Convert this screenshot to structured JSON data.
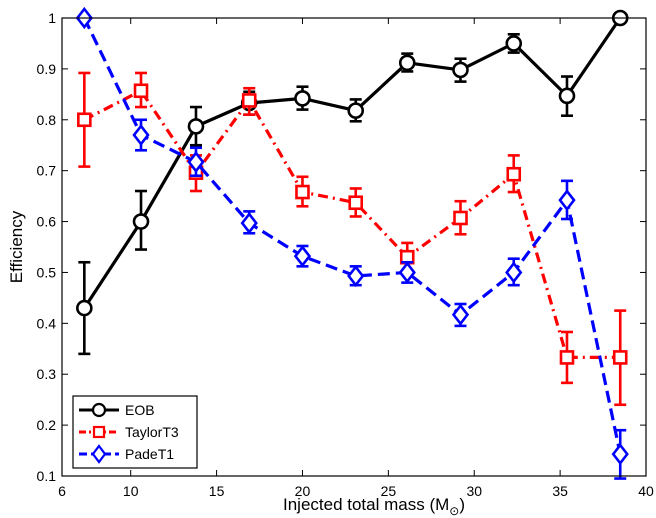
{
  "chart_data": {
    "type": "line",
    "xlabel": "Injected total mass (M",
    "xlabel_sub": "⊙",
    "xlabel_close": ")",
    "ylabel": "Efficiency",
    "xlim": [
      6,
      40
    ],
    "ylim": [
      0.1,
      1.0
    ],
    "xticks": [
      6,
      10,
      15,
      20,
      25,
      30,
      35,
      40
    ],
    "yticks": [
      0.1,
      0.2,
      0.3,
      0.4,
      0.5,
      0.6,
      0.7,
      0.8,
      0.9,
      1
    ],
    "xtick_labels": [
      "6",
      "10",
      "15",
      "20",
      "25",
      "30",
      "35",
      "40"
    ],
    "ytick_labels": [
      "0.1",
      "0.2",
      "0.3",
      "0.4",
      "0.5",
      "0.6",
      "0.7",
      "0.8",
      "0.9",
      "1"
    ],
    "grid": false,
    "legend_position": "bottom-left",
    "series": [
      {
        "name": "EOB",
        "color": "#000000",
        "line_style": "solid",
        "marker": "circle",
        "points": [
          {
            "x": 7.3,
            "y": 0.43,
            "lo": 0.34,
            "hi": 0.52
          },
          {
            "x": 10.6,
            "y": 0.6,
            "lo": 0.545,
            "hi": 0.66
          },
          {
            "x": 13.8,
            "y": 0.787,
            "lo": 0.75,
            "hi": 0.825
          },
          {
            "x": 16.9,
            "y": 0.833,
            "lo": 0.81,
            "hi": 0.855
          },
          {
            "x": 20.0,
            "y": 0.842,
            "lo": 0.82,
            "hi": 0.865
          },
          {
            "x": 23.1,
            "y": 0.818,
            "lo": 0.797,
            "hi": 0.84
          },
          {
            "x": 26.1,
            "y": 0.912,
            "lo": 0.895,
            "hi": 0.93
          },
          {
            "x": 29.2,
            "y": 0.898,
            "lo": 0.875,
            "hi": 0.92
          },
          {
            "x": 32.3,
            "y": 0.95,
            "lo": 0.932,
            "hi": 0.968
          },
          {
            "x": 35.4,
            "y": 0.847,
            "lo": 0.808,
            "hi": 0.885
          },
          {
            "x": 38.5,
            "y": 1.0,
            "lo": 1.0,
            "hi": 1.0
          }
        ]
      },
      {
        "name": "TaylorT3",
        "color": "#ff0000",
        "line_style": "dashdot",
        "marker": "square",
        "points": [
          {
            "x": 7.3,
            "y": 0.8,
            "lo": 0.708,
            "hi": 0.892
          },
          {
            "x": 10.6,
            "y": 0.857,
            "lo": 0.825,
            "hi": 0.892
          },
          {
            "x": 13.8,
            "y": 0.696,
            "lo": 0.66,
            "hi": 0.73
          },
          {
            "x": 16.9,
            "y": 0.838,
            "lo": 0.81,
            "hi": 0.862
          },
          {
            "x": 20.0,
            "y": 0.658,
            "lo": 0.63,
            "hi": 0.688
          },
          {
            "x": 23.1,
            "y": 0.637,
            "lo": 0.61,
            "hi": 0.665
          },
          {
            "x": 26.1,
            "y": 0.53,
            "lo": 0.503,
            "hi": 0.558
          },
          {
            "x": 29.2,
            "y": 0.607,
            "lo": 0.575,
            "hi": 0.64
          },
          {
            "x": 32.3,
            "y": 0.693,
            "lo": 0.658,
            "hi": 0.73
          },
          {
            "x": 35.4,
            "y": 0.333,
            "lo": 0.283,
            "hi": 0.383
          },
          {
            "x": 38.5,
            "y": 0.333,
            "lo": 0.24,
            "hi": 0.425
          }
        ]
      },
      {
        "name": "PadeT1",
        "color": "#0000ff",
        "line_style": "dashed",
        "marker": "diamond",
        "points": [
          {
            "x": 7.3,
            "y": 1.0,
            "lo": 1.0,
            "hi": 1.0
          },
          {
            "x": 10.6,
            "y": 0.77,
            "lo": 0.74,
            "hi": 0.8
          },
          {
            "x": 13.8,
            "y": 0.717,
            "lo": 0.69,
            "hi": 0.745
          },
          {
            "x": 16.9,
            "y": 0.597,
            "lo": 0.577,
            "hi": 0.62
          },
          {
            "x": 20.0,
            "y": 0.532,
            "lo": 0.512,
            "hi": 0.552
          },
          {
            "x": 23.1,
            "y": 0.493,
            "lo": 0.475,
            "hi": 0.512
          },
          {
            "x": 26.1,
            "y": 0.5,
            "lo": 0.48,
            "hi": 0.52
          },
          {
            "x": 29.2,
            "y": 0.417,
            "lo": 0.395,
            "hi": 0.438
          },
          {
            "x": 32.3,
            "y": 0.5,
            "lo": 0.475,
            "hi": 0.527
          },
          {
            "x": 35.4,
            "y": 0.642,
            "lo": 0.605,
            "hi": 0.68
          },
          {
            "x": 38.5,
            "y": 0.143,
            "lo": 0.095,
            "hi": 0.19
          }
        ]
      }
    ]
  }
}
